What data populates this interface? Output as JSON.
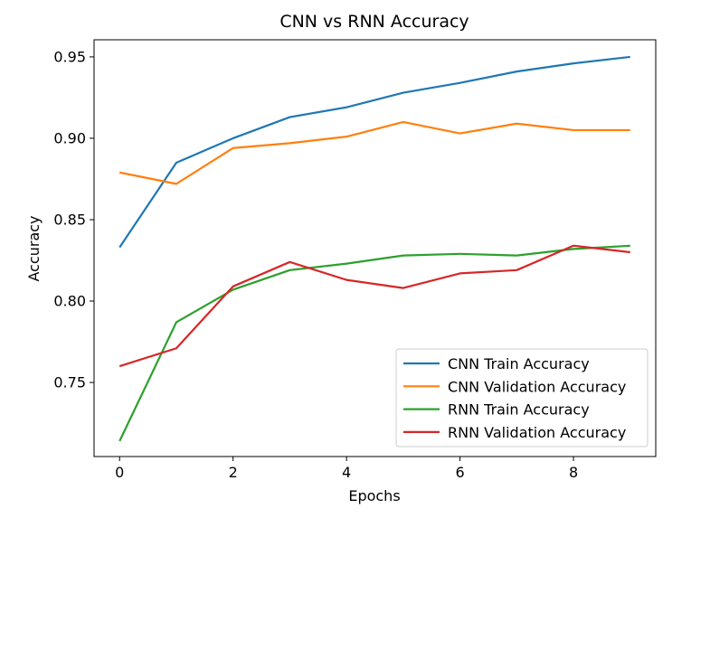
{
  "chart_data": {
    "type": "line",
    "title": "CNN vs RNN Accuracy",
    "xlabel": "Epochs",
    "ylabel": "Accuracy",
    "x": [
      0,
      1,
      2,
      3,
      4,
      5,
      6,
      7,
      8,
      9
    ],
    "xlim": [
      -0.45,
      9.45
    ],
    "ylim": [
      0.7045,
      0.9605
    ],
    "xticks": [
      0,
      2,
      4,
      6,
      8
    ],
    "yticks": [
      0.75,
      0.8,
      0.85,
      0.9,
      0.95
    ],
    "xtick_labels": [
      "0",
      "2",
      "4",
      "6",
      "8"
    ],
    "ytick_labels": [
      "0.75",
      "0.80",
      "0.85",
      "0.90",
      "0.95"
    ],
    "grid": false,
    "legend_position": "lower-right",
    "series": [
      {
        "name": "CNN Train Accuracy",
        "color": "#1f77b4",
        "values": [
          0.833,
          0.885,
          0.9,
          0.913,
          0.919,
          0.928,
          0.934,
          0.941,
          0.946,
          0.95
        ]
      },
      {
        "name": "CNN Validation Accuracy",
        "color": "#ff7f0e",
        "values": [
          0.879,
          0.872,
          0.894,
          0.897,
          0.901,
          0.91,
          0.903,
          0.909,
          0.905,
          0.905
        ]
      },
      {
        "name": "RNN Train Accuracy",
        "color": "#2ca02c",
        "values": [
          0.714,
          0.787,
          0.807,
          0.819,
          0.823,
          0.828,
          0.829,
          0.828,
          0.832,
          0.834
        ]
      },
      {
        "name": "RNN Validation Accuracy",
        "color": "#d62728",
        "values": [
          0.76,
          0.771,
          0.809,
          0.824,
          0.813,
          0.808,
          0.817,
          0.819,
          0.834,
          0.83
        ]
      }
    ]
  }
}
